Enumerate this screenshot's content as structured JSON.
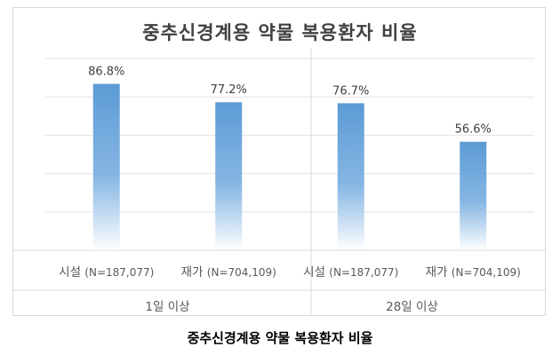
{
  "chart_data": {
    "type": "bar",
    "title": "중추신경계용 약물 복용환자 비율",
    "groups": [
      "1일 이상",
      "28일 이상"
    ],
    "categories": [
      {
        "main": "시설",
        "sub": "(N=187,077)",
        "group": 0
      },
      {
        "main": "재가",
        "sub": "(N=704,109)",
        "group": 0
      },
      {
        "main": "시설",
        "sub": "(N=187,077)",
        "group": 1
      },
      {
        "main": "재가",
        "sub": "(N=704,109)",
        "group": 1
      }
    ],
    "values": [
      86.8,
      77.2,
      76.7,
      56.6
    ],
    "data_labels": [
      "86.8%",
      "77.2%",
      "76.7%",
      "56.6%"
    ],
    "ylim": [
      0,
      100
    ],
    "grid": true,
    "bar_color": "#5b9bd5"
  },
  "caption": "중추신경계용 약물 복용환자 비율"
}
